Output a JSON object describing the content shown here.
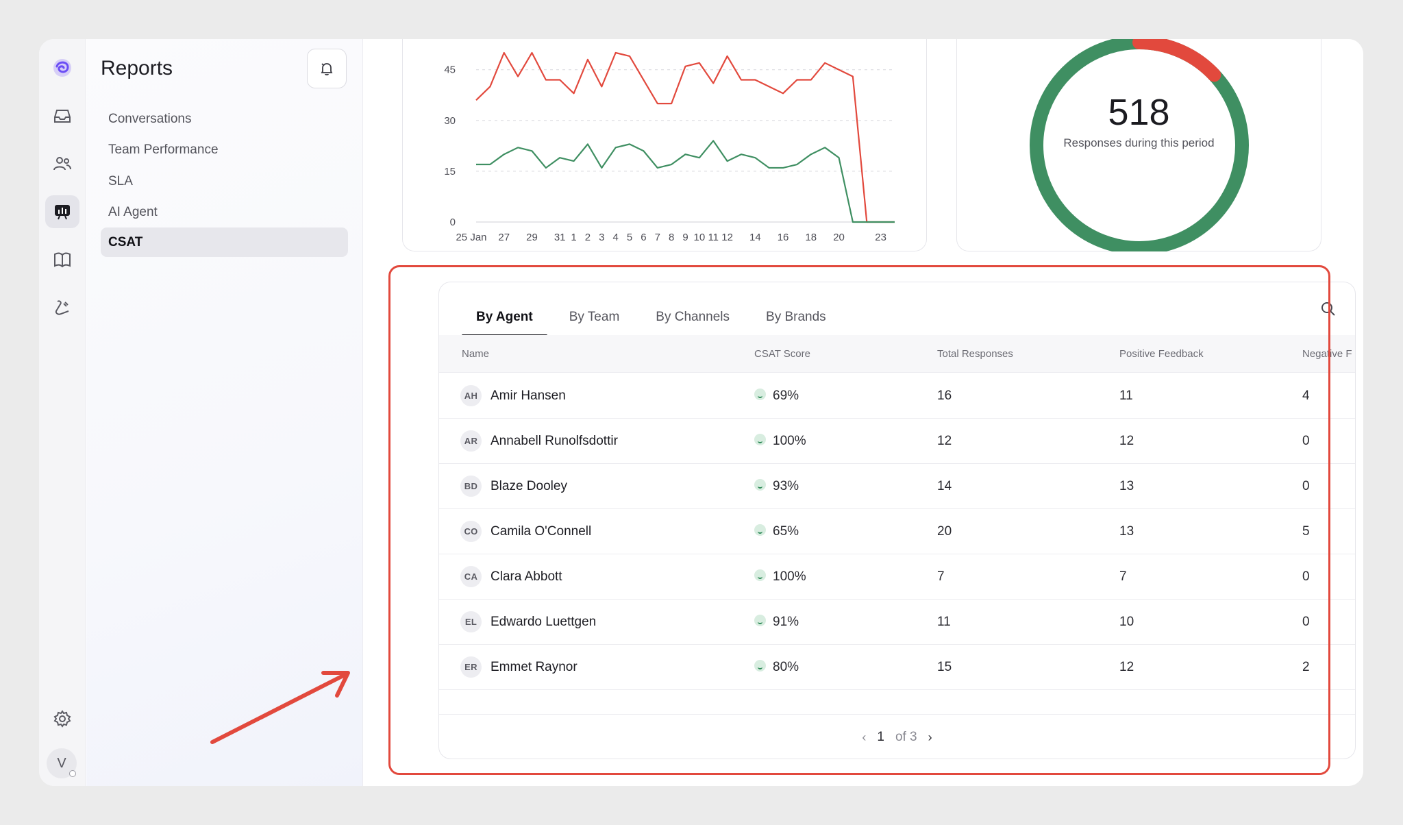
{
  "sidebar": {
    "title": "Reports",
    "items": [
      {
        "label": "Conversations"
      },
      {
        "label": "Team Performance"
      },
      {
        "label": "SLA"
      },
      {
        "label": "AI Agent"
      },
      {
        "label": "CSAT"
      }
    ]
  },
  "user": {
    "initial": "V"
  },
  "colors": {
    "accent": "#e2493d",
    "positive": "#3f8f62",
    "negative": "#e2493d"
  },
  "chart_data": {
    "type": "line",
    "x_tick_labels": [
      "25 Jan",
      "27",
      "29",
      "31",
      "1",
      "2",
      "3",
      "4",
      "5",
      "6",
      "7",
      "8",
      "9",
      "10",
      "11",
      "12",
      "14",
      "16",
      "18",
      "20",
      "23"
    ],
    "y_ticks": [
      0,
      15,
      30,
      45
    ],
    "ylim": [
      0,
      50
    ],
    "series": [
      {
        "color": "#e2493d",
        "values": [
          36,
          40,
          50,
          43,
          50,
          42,
          42,
          38,
          48,
          40,
          50,
          49,
          42,
          35,
          35,
          46,
          47,
          41,
          49,
          42,
          42,
          40,
          38,
          42,
          42,
          47,
          45,
          43,
          0,
          0,
          0
        ]
      },
      {
        "color": "#3f8f62",
        "values": [
          17,
          17,
          20,
          22,
          21,
          16,
          19,
          18,
          23,
          16,
          22,
          23,
          21,
          16,
          17,
          20,
          19,
          24,
          18,
          20,
          19,
          16,
          16,
          17,
          20,
          22,
          19,
          0,
          0,
          0,
          0
        ]
      }
    ],
    "grid": true
  },
  "donut": {
    "total": "518",
    "label": "Responses during this period",
    "positive_fraction": 0.87,
    "negative_fraction": 0.13
  },
  "table": {
    "tabs": [
      {
        "label": "By Agent"
      },
      {
        "label": "By Team"
      },
      {
        "label": "By Channels"
      },
      {
        "label": "By Brands"
      }
    ],
    "columns": [
      "Name",
      "CSAT Score",
      "Total Responses",
      "Positive Feedback",
      "Negative F"
    ],
    "rows": [
      {
        "initials": "AH",
        "name": "Amir Hansen",
        "score": "69%",
        "total": "16",
        "positive": "11",
        "negative": "4"
      },
      {
        "initials": "AR",
        "name": "Annabell Runolfsdottir",
        "score": "100%",
        "total": "12",
        "positive": "12",
        "negative": "0"
      },
      {
        "initials": "BD",
        "name": "Blaze Dooley",
        "score": "93%",
        "total": "14",
        "positive": "13",
        "negative": "0"
      },
      {
        "initials": "CO",
        "name": "Camila O'Connell",
        "score": "65%",
        "total": "20",
        "positive": "13",
        "negative": "5"
      },
      {
        "initials": "CA",
        "name": "Clara Abbott",
        "score": "100%",
        "total": "7",
        "positive": "7",
        "negative": "0"
      },
      {
        "initials": "EL",
        "name": "Edwardo Luettgen",
        "score": "91%",
        "total": "11",
        "positive": "10",
        "negative": "0"
      },
      {
        "initials": "ER",
        "name": "Emmet Raynor",
        "score": "80%",
        "total": "15",
        "positive": "12",
        "negative": "2"
      }
    ],
    "pagination": {
      "current": "1",
      "of_label": "of 3"
    }
  }
}
